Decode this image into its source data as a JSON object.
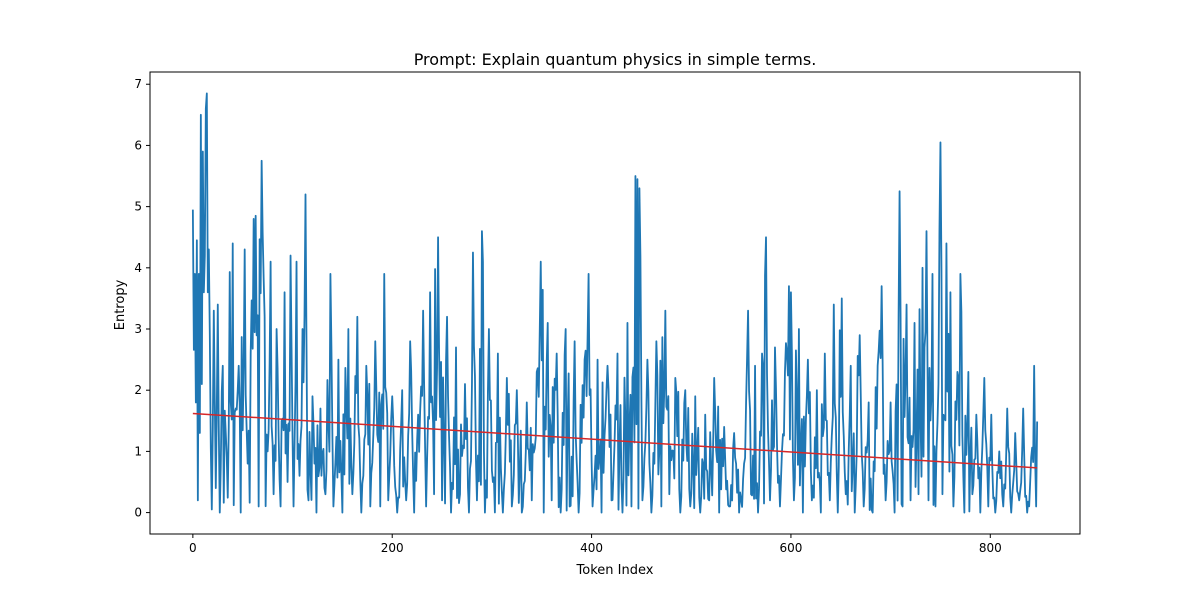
{
  "chart_data": {
    "type": "line",
    "title": "Prompt: Explain quantum physics in simple terms.",
    "xlabel": "Token Index",
    "ylabel": "Entropy",
    "xlim": [
      -43,
      890
    ],
    "ylim": [
      -0.35,
      7.2
    ],
    "xticks": [
      0,
      200,
      400,
      600,
      800
    ],
    "yticks": [
      0,
      1,
      2,
      3,
      4,
      5,
      6,
      7
    ],
    "grid": false,
    "series": [
      {
        "role": "entropy",
        "color": "#1f77b4",
        "n_points": 848,
        "anchors": [
          [
            0,
            4.95
          ],
          [
            2,
            3.9
          ],
          [
            3,
            1.8
          ],
          [
            4,
            4.45
          ],
          [
            5,
            0.2
          ],
          [
            6,
            3.9
          ],
          [
            7,
            1.3
          ],
          [
            8,
            6.5
          ],
          [
            9,
            2.1
          ],
          [
            10,
            5.9
          ],
          [
            11,
            3.6
          ],
          [
            12,
            4.2
          ],
          [
            13,
            6.6
          ],
          [
            14,
            6.85
          ],
          [
            15,
            3.6
          ],
          [
            16,
            4.3
          ],
          [
            17,
            2.9
          ],
          [
            19,
            0.05
          ],
          [
            21,
            3.3
          ],
          [
            23,
            0.4
          ],
          [
            25,
            3.4
          ],
          [
            27,
            0.0
          ],
          [
            30,
            2.4
          ],
          [
            33,
            1.3
          ],
          [
            36,
            1.4
          ],
          [
            40,
            4.4
          ],
          [
            43,
            1.7
          ],
          [
            46,
            2.4
          ],
          [
            48,
            0.0
          ],
          [
            52,
            4.3
          ],
          [
            55,
            0.8
          ],
          [
            58,
            2.6
          ],
          [
            61,
            4.8
          ],
          [
            63,
            4.85
          ],
          [
            66,
            0.1
          ],
          [
            69,
            5.75
          ],
          [
            72,
            3.2
          ],
          [
            75,
            1.0
          ],
          [
            78,
            4.1
          ],
          [
            81,
            0.3
          ],
          [
            84,
            3.0
          ],
          [
            88,
            0.1
          ],
          [
            92,
            3.6
          ],
          [
            95,
            0.5
          ],
          [
            98,
            4.2
          ],
          [
            101,
            0.1
          ],
          [
            104,
            4.1
          ],
          [
            107,
            0.6
          ],
          [
            110,
            3.0
          ],
          [
            113,
            5.2
          ],
          [
            116,
            0.2
          ],
          [
            120,
            1.9
          ],
          [
            124,
            0.0
          ],
          [
            128,
            1.7
          ],
          [
            133,
            0.3
          ],
          [
            138,
            3.9
          ],
          [
            141,
            0.1
          ],
          [
            146,
            2.5
          ],
          [
            150,
            0.0
          ],
          [
            156,
            3.0
          ],
          [
            160,
            0.3
          ],
          [
            165,
            3.2
          ],
          [
            169,
            0.0
          ],
          [
            174,
            2.4
          ],
          [
            178,
            0.1
          ],
          [
            183,
            2.8
          ],
          [
            188,
            0.1
          ],
          [
            192,
            3.9
          ],
          [
            196,
            0.2
          ],
          [
            200,
            1.9
          ],
          [
            205,
            0.0
          ],
          [
            210,
            2.0
          ],
          [
            214,
            0.2
          ],
          [
            218,
            2.8
          ],
          [
            222,
            0.0
          ],
          [
            226,
            1.6
          ],
          [
            231,
            3.3
          ],
          [
            234,
            0.1
          ],
          [
            238,
            3.6
          ],
          [
            242,
            0.3
          ],
          [
            246,
            4.5
          ],
          [
            250,
            0.2
          ],
          [
            255,
            3.2
          ],
          [
            259,
            0.0
          ],
          [
            264,
            2.7
          ],
          [
            268,
            0.3
          ],
          [
            273,
            2.1
          ],
          [
            277,
            0.0
          ],
          [
            281,
            4.25
          ],
          [
            285,
            0.2
          ],
          [
            290,
            4.6
          ],
          [
            293,
            0.0
          ],
          [
            297,
            3.0
          ],
          [
            301,
            0.5
          ],
          [
            306,
            2.6
          ],
          [
            311,
            0.0
          ],
          [
            315,
            2.2
          ],
          [
            320,
            0.1
          ],
          [
            325,
            2.0
          ],
          [
            330,
            0.0
          ],
          [
            335,
            1.8
          ],
          [
            340,
            0.2
          ],
          [
            345,
            2.3
          ],
          [
            349,
            4.1
          ],
          [
            352,
            0.0
          ],
          [
            356,
            3.1
          ],
          [
            360,
            0.2
          ],
          [
            365,
            2.6
          ],
          [
            369,
            0.0
          ],
          [
            374,
            3.0
          ],
          [
            378,
            0.1
          ],
          [
            383,
            2.8
          ],
          [
            387,
            0.0
          ],
          [
            393,
            2.5
          ],
          [
            397,
            3.9
          ],
          [
            401,
            0.1
          ],
          [
            406,
            2.5
          ],
          [
            410,
            0.0
          ],
          [
            416,
            2.4
          ],
          [
            420,
            0.2
          ],
          [
            426,
            2.6
          ],
          [
            431,
            0.0
          ],
          [
            436,
            3.1
          ],
          [
            440,
            0.1
          ],
          [
            444,
            5.5
          ],
          [
            446,
            5.45
          ],
          [
            448,
            5.3
          ],
          [
            451,
            0.2
          ],
          [
            456,
            2.5
          ],
          [
            460,
            0.0
          ],
          [
            465,
            2.8
          ],
          [
            470,
            0.1
          ],
          [
            474,
            3.3
          ],
          [
            478,
            0.3
          ],
          [
            484,
            2.2
          ],
          [
            489,
            0.0
          ],
          [
            494,
            2.0
          ],
          [
            499,
            0.1
          ],
          [
            504,
            1.9
          ],
          [
            509,
            0.0
          ],
          [
            514,
            1.6
          ],
          [
            518,
            0.2
          ],
          [
            523,
            2.2
          ],
          [
            528,
            0.0
          ],
          [
            533,
            1.4
          ],
          [
            538,
            0.1
          ],
          [
            543,
            1.3
          ],
          [
            548,
            0.0
          ],
          [
            553,
            0.8
          ],
          [
            557,
            3.3
          ],
          [
            560,
            0.3
          ],
          [
            564,
            2.4
          ],
          [
            567,
            0.0
          ],
          [
            571,
            2.6
          ],
          [
            575,
            4.5
          ],
          [
            579,
            0.2
          ],
          [
            584,
            2.7
          ],
          [
            589,
            0.1
          ],
          [
            594,
            2.3
          ],
          [
            598,
            3.7
          ],
          [
            600,
            3.6
          ],
          [
            603,
            0.2
          ],
          [
            608,
            3.0
          ],
          [
            612,
            0.0
          ],
          [
            617,
            2.5
          ],
          [
            621,
            0.2
          ],
          [
            626,
            2.0
          ],
          [
            630,
            0.0
          ],
          [
            634,
            2.6
          ],
          [
            639,
            0.2
          ],
          [
            643,
            3.4
          ],
          [
            647,
            0.0
          ],
          [
            651,
            3.5
          ],
          [
            655,
            0.3
          ],
          [
            660,
            2.4
          ],
          [
            664,
            0.0
          ],
          [
            669,
            2.9
          ],
          [
            673,
            0.1
          ],
          [
            678,
            1.8
          ],
          [
            682,
            0.0
          ],
          [
            687,
            2.4
          ],
          [
            691,
            3.7
          ],
          [
            695,
            0.2
          ],
          [
            700,
            1.8
          ],
          [
            704,
            0.0
          ],
          [
            709,
            5.25
          ],
          [
            712,
            0.1
          ],
          [
            716,
            3.4
          ],
          [
            720,
            0.2
          ],
          [
            724,
            3.1
          ],
          [
            728,
            0.3
          ],
          [
            732,
            4.0
          ],
          [
            736,
            4.6
          ],
          [
            738,
            0.2
          ],
          [
            742,
            3.9
          ],
          [
            745,
            0.1
          ],
          [
            749,
            4.6
          ],
          [
            750,
            6.05
          ],
          [
            752,
            0.3
          ],
          [
            756,
            4.4
          ],
          [
            760,
            3.6
          ],
          [
            763,
            0.1
          ],
          [
            767,
            2.3
          ],
          [
            770,
            3.9
          ],
          [
            774,
            0.0
          ],
          [
            778,
            2.3
          ],
          [
            782,
            0.3
          ],
          [
            786,
            1.6
          ],
          [
            790,
            0.0
          ],
          [
            794,
            2.2
          ],
          [
            798,
            0.1
          ],
          [
            801,
            1.6
          ],
          [
            805,
            0.0
          ],
          [
            809,
            1.0
          ],
          [
            813,
            0.1
          ],
          [
            817,
            1.7
          ],
          [
            821,
            0.0
          ],
          [
            825,
            1.3
          ],
          [
            829,
            0.2
          ],
          [
            833,
            1.7
          ],
          [
            837,
            0.0
          ],
          [
            841,
            0.9
          ],
          [
            844,
            2.4
          ],
          [
            846,
            0.1
          ]
        ]
      },
      {
        "role": "trend",
        "color": "#d62728",
        "x": [
          0,
          847
        ],
        "y": [
          1.62,
          0.73
        ]
      }
    ]
  }
}
